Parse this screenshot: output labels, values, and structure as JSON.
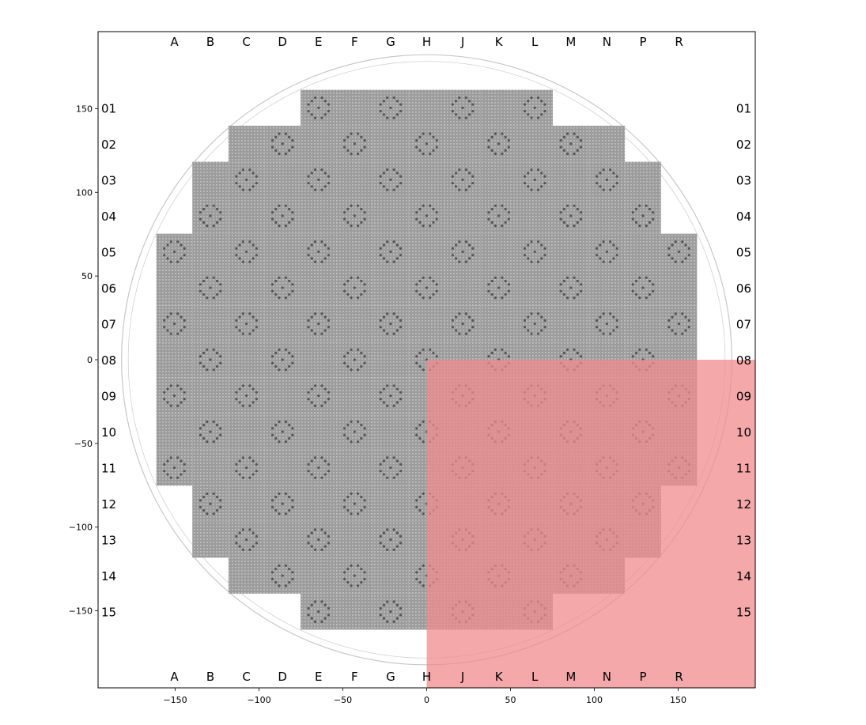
{
  "chart_data": {
    "type": "core_map",
    "axes": {
      "x_range": [
        -196,
        196
      ],
      "y_range": [
        -196,
        196
      ],
      "x_ticks": [
        -150,
        -100,
        -50,
        0,
        50,
        100,
        150
      ],
      "x_tick_labels": [
        "−150",
        "−100",
        "−50",
        "0",
        "50",
        "100",
        "150"
      ],
      "y_ticks": [
        150,
        100,
        50,
        0,
        -50,
        -100,
        -150
      ],
      "y_tick_labels": [
        "150",
        "100",
        "50",
        "0",
        "−50",
        "−100",
        "−150"
      ]
    },
    "column_labels": [
      "R",
      "P",
      "N",
      "M",
      "L",
      "K",
      "J",
      "H",
      "G",
      "F",
      "E",
      "D",
      "C",
      "B",
      "A"
    ],
    "row_labels": [
      "01",
      "02",
      "03",
      "04",
      "05",
      "06",
      "07",
      "08",
      "09",
      "10",
      "11",
      "12",
      "13",
      "14",
      "15"
    ],
    "assembly_pitch": 21.5,
    "core_row_spans": [
      [
        4,
        10
      ],
      [
        2,
        12
      ],
      [
        1,
        13
      ],
      [
        1,
        13
      ],
      [
        0,
        14
      ],
      [
        0,
        14
      ],
      [
        0,
        14
      ],
      [
        0,
        14
      ],
      [
        0,
        14
      ],
      [
        0,
        14
      ],
      [
        0,
        14
      ],
      [
        1,
        13
      ],
      [
        1,
        13
      ],
      [
        2,
        12
      ],
      [
        4,
        10
      ]
    ],
    "reflector_row_spans": [
      [
        2,
        12
      ],
      [
        1,
        13
      ],
      [
        0,
        14
      ],
      [
        -1,
        15
      ],
      [
        -1,
        15
      ],
      [
        -1,
        15
      ],
      [
        -1,
        15
      ],
      [
        -1,
        15
      ],
      [
        -1,
        15
      ],
      [
        -1,
        15
      ],
      [
        -1,
        15
      ],
      [
        -1,
        15
      ],
      [
        0,
        14
      ],
      [
        1,
        13
      ],
      [
        2,
        12
      ]
    ],
    "reflector_top_span": [
      4,
      10
    ],
    "reflector_bottom_span": [
      4,
      10
    ],
    "barrel_radius": 182,
    "highlight": {
      "x_range": [
        0,
        196
      ],
      "y_range": [
        -196,
        0
      ],
      "color": "#f28b8e",
      "opacity": 0.75
    },
    "colors": {
      "fuel": "#9a9a9a",
      "reflector": "#e8e8e8",
      "background": "#ffffff"
    }
  }
}
